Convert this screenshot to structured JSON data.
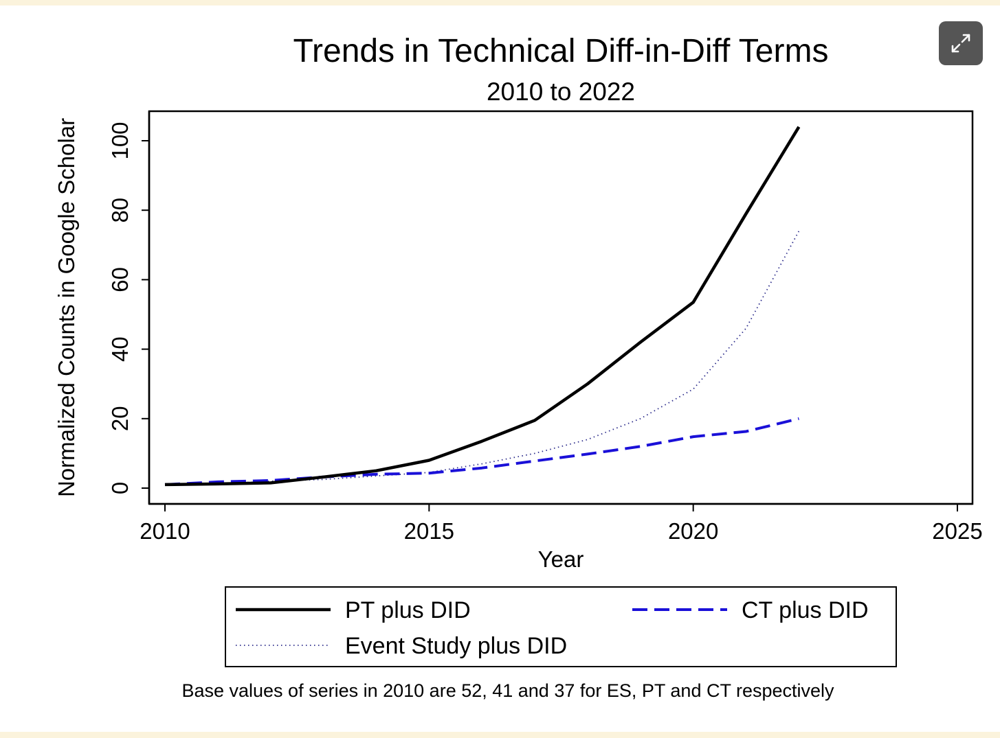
{
  "expand_icon": "expand-arrows-icon",
  "chart_data": {
    "type": "line",
    "title": "Trends in Technical Diff-in-Diff Terms",
    "subtitle": "2010 to 2022",
    "xlabel": "Year",
    "ylabel": "Normalized Counts in Google Scholar",
    "xlim": [
      2010,
      2025
    ],
    "ylim": [
      0,
      105
    ],
    "xticks": [
      2010,
      2015,
      2020,
      2025
    ],
    "yticks": [
      0,
      20,
      40,
      60,
      80,
      100
    ],
    "x": [
      2010,
      2011,
      2012,
      2013,
      2014,
      2015,
      2016,
      2017,
      2018,
      2019,
      2020,
      2021,
      2022
    ],
    "series": [
      {
        "name": "PT plus DID",
        "style": "solid",
        "color": "#000000",
        "values": [
          1,
          1.2,
          1.5,
          3.2,
          5,
          8,
          13.5,
          19.5,
          30,
          42,
          53.5,
          79,
          104
        ]
      },
      {
        "name": "CT plus DID",
        "style": "dashed",
        "color": "#1a10d8",
        "values": [
          1,
          1.8,
          2.2,
          3.2,
          4,
          4.3,
          5.8,
          7.8,
          9.8,
          12,
          14.8,
          16.3,
          20
        ]
      },
      {
        "name": "Event Study plus DID",
        "style": "dotted",
        "color": "#2a2a8a",
        "values": [
          1,
          1.2,
          2,
          2.5,
          3.5,
          4.5,
          7,
          10,
          14,
          20,
          28.5,
          46,
          74
        ]
      }
    ],
    "legend_order": [
      "PT plus DID",
      "CT plus DID",
      "Event Study plus DID"
    ],
    "legend_position": "bottom",
    "note": "Base values of series in 2010 are 52, 41 and 37 for ES, PT and CT respectively",
    "grid": false
  }
}
